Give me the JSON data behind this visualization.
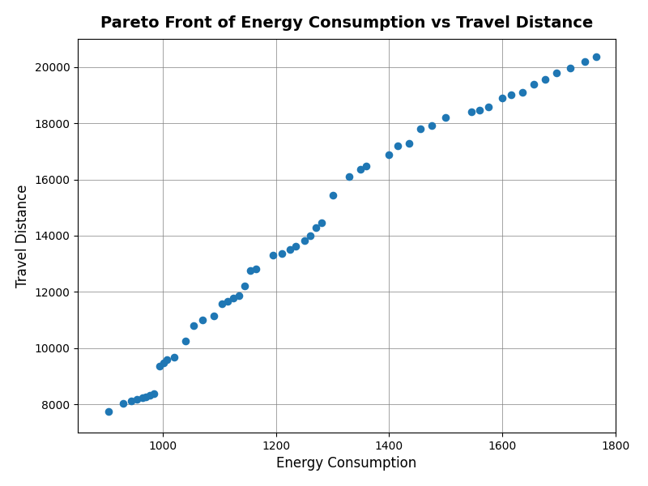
{
  "title": "Pareto Front of Energy Consumption vs Travel Distance",
  "xlabel": "Energy Consumption",
  "ylabel": "Travel Distance",
  "xlim": [
    850,
    1800
  ],
  "ylim": [
    7000,
    21000
  ],
  "marker_color": "#1f77b4",
  "marker_size": 35,
  "grid": true,
  "x_data": [
    905,
    930,
    945,
    955,
    965,
    970,
    978,
    985,
    995,
    1002,
    1008,
    1020,
    1040,
    1055,
    1070,
    1090,
    1105,
    1115,
    1125,
    1135,
    1145,
    1155,
    1165,
    1195,
    1210,
    1225,
    1235,
    1250,
    1260,
    1270,
    1280,
    1300,
    1330,
    1350,
    1360,
    1400,
    1415,
    1435,
    1455,
    1475,
    1500,
    1545,
    1560,
    1575,
    1600,
    1615,
    1635,
    1655,
    1675,
    1695,
    1720,
    1745,
    1765
  ],
  "y_data": [
    7750,
    8050,
    8120,
    8180,
    8230,
    8280,
    8320,
    8380,
    9350,
    9480,
    9580,
    9680,
    10250,
    10800,
    11000,
    11150,
    11580,
    11680,
    11780,
    11870,
    12200,
    12750,
    12820,
    13300,
    13380,
    13500,
    13620,
    13820,
    14000,
    14280,
    14450,
    15450,
    16100,
    16350,
    16480,
    16880,
    17200,
    17280,
    17800,
    17920,
    18200,
    18400,
    18470,
    18580,
    18900,
    19000,
    19100,
    19380,
    19570,
    19790,
    19970,
    20200,
    20360
  ],
  "figure_size": [
    8.0,
    6.0
  ],
  "dpi": 100,
  "title_fontsize": 14,
  "label_fontsize": 12
}
